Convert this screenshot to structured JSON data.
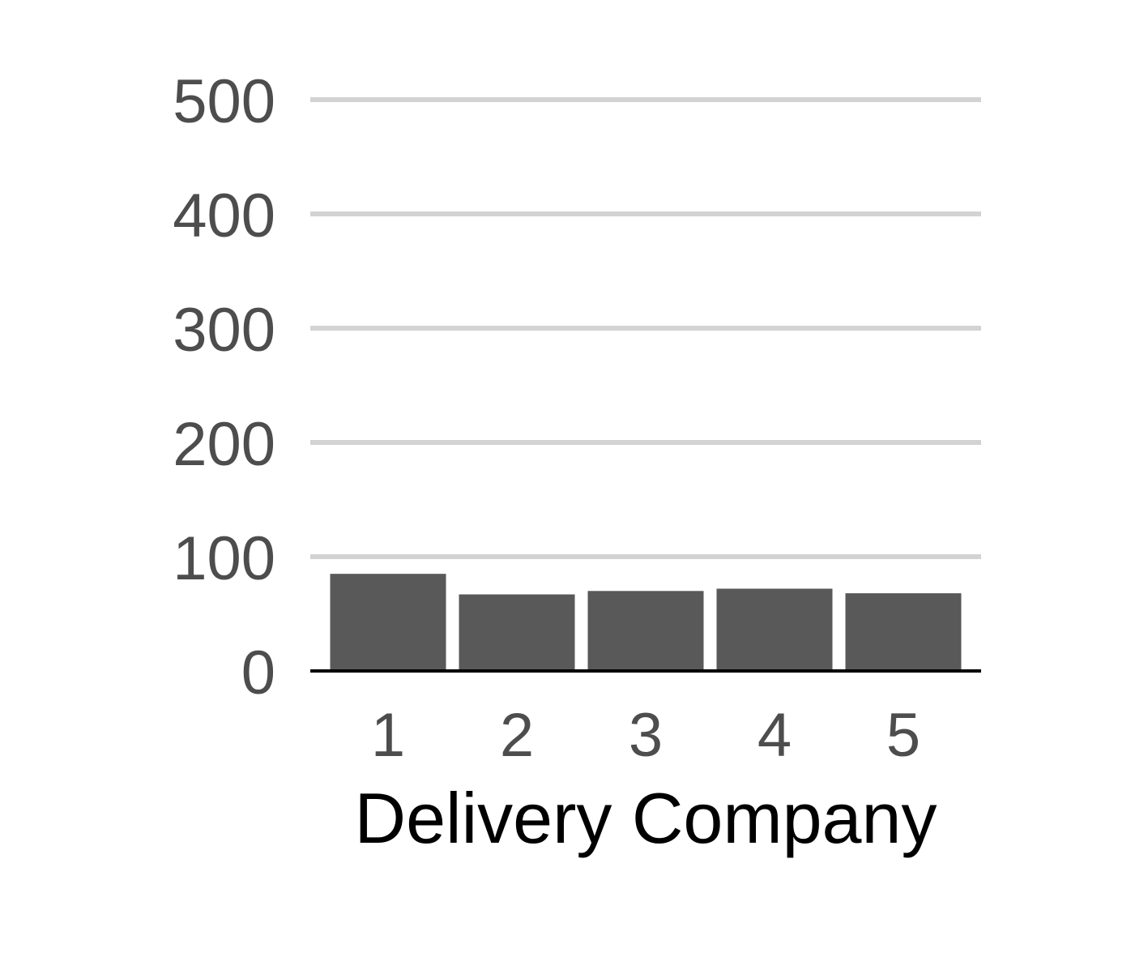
{
  "chart_data": {
    "type": "bar",
    "title": "",
    "xlabel": "Delivery Company",
    "ylabel": "",
    "categories": [
      "1",
      "2",
      "3",
      "4",
      "5"
    ],
    "values": [
      85,
      67,
      70,
      72,
      68
    ],
    "ylim": [
      0,
      500
    ],
    "yticks": [
      0,
      100,
      200,
      300,
      400,
      500
    ],
    "ytick_labels": [
      "0",
      "100",
      "200",
      "300",
      "400",
      "500"
    ],
    "grid": true,
    "legend": "none",
    "colors": {
      "bar": "#595959",
      "gridline": "#d3d3d3",
      "axis_line": "#000000",
      "tick_text": "#4d4d4d",
      "axis_title": "#000000"
    }
  }
}
